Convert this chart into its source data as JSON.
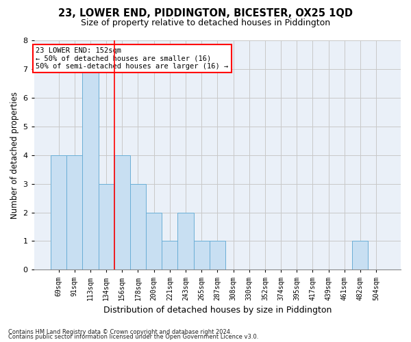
{
  "title": "23, LOWER END, PIDDINGTON, BICESTER, OX25 1QD",
  "subtitle": "Size of property relative to detached houses in Piddington",
  "xlabel": "Distribution of detached houses by size in Piddington",
  "ylabel": "Number of detached properties",
  "categories": [
    "69sqm",
    "91sqm",
    "113sqm",
    "134sqm",
    "156sqm",
    "178sqm",
    "200sqm",
    "221sqm",
    "243sqm",
    "265sqm",
    "287sqm",
    "308sqm",
    "330sqm",
    "352sqm",
    "374sqm",
    "395sqm",
    "417sqm",
    "439sqm",
    "461sqm",
    "482sqm",
    "504sqm"
  ],
  "bar_heights": [
    4,
    4,
    7,
    3,
    4,
    3,
    2,
    1,
    2,
    1,
    1,
    0,
    0,
    0,
    0,
    0,
    0,
    0,
    0,
    1,
    0
  ],
  "bar_color": "#c8dff2",
  "bar_edgecolor": "#6aaed6",
  "annotation_line1": "23 LOWER END: 152sqm",
  "annotation_line2": "← 50% of detached houses are smaller (16)",
  "annotation_line3": "50% of semi-detached houses are larger (16) →",
  "redline_index": 3.5,
  "ylim": [
    0,
    8
  ],
  "yticks": [
    0,
    1,
    2,
    3,
    4,
    5,
    6,
    7,
    8
  ],
  "grid_color": "#c8c8c8",
  "background_color": "#eaf0f8",
  "footer_line1": "Contains HM Land Registry data © Crown copyright and database right 2024.",
  "footer_line2": "Contains public sector information licensed under the Open Government Licence v3.0.",
  "title_fontsize": 10.5,
  "subtitle_fontsize": 9,
  "tick_fontsize": 7,
  "ylabel_fontsize": 8.5,
  "xlabel_fontsize": 9,
  "annotation_fontsize": 7.5,
  "annotation_box_color": "white",
  "annotation_box_edgecolor": "red",
  "redline_color": "red"
}
